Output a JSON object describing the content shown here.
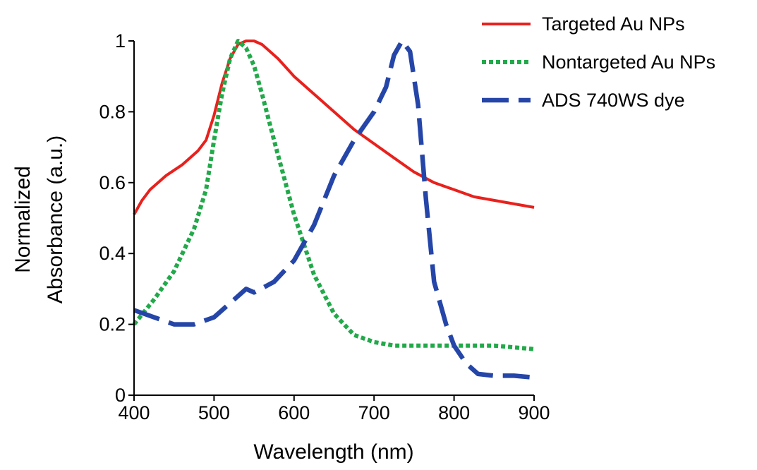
{
  "chart_data": {
    "type": "line",
    "title": "",
    "xlabel": "Wavelength (nm)",
    "ylabel_lines": [
      "Normalized",
      "Absorbance (a.u.)"
    ],
    "xlim": [
      400,
      900
    ],
    "ylim": [
      0,
      1
    ],
    "xticks": [
      "400",
      "500",
      "600",
      "700",
      "800",
      "900"
    ],
    "yticks": [
      "0",
      "0.2",
      "0.4",
      "0.6",
      "0.8",
      "1"
    ],
    "grid": false,
    "legend_position": "top-right",
    "series": [
      {
        "name": "Targeted Au NPs",
        "color": "#e8211d",
        "style": "solid",
        "x": [
          400,
          410,
          420,
          440,
          460,
          480,
          490,
          500,
          510,
          520,
          530,
          540,
          550,
          560,
          580,
          600,
          625,
          650,
          675,
          700,
          725,
          750,
          775,
          800,
          825,
          850,
          875,
          900
        ],
        "y": [
          0.51,
          0.55,
          0.58,
          0.62,
          0.65,
          0.69,
          0.72,
          0.79,
          0.88,
          0.95,
          0.99,
          1.0,
          1.0,
          0.99,
          0.95,
          0.9,
          0.85,
          0.8,
          0.75,
          0.71,
          0.67,
          0.63,
          0.6,
          0.58,
          0.56,
          0.55,
          0.54,
          0.53
        ]
      },
      {
        "name": "Nontargeted Au NPs",
        "color": "#22a94a",
        "style": "dotted",
        "x": [
          400,
          425,
          450,
          475,
          490,
          500,
          510,
          520,
          530,
          540,
          550,
          560,
          575,
          600,
          625,
          650,
          675,
          700,
          725,
          750,
          775,
          800,
          825,
          850,
          875,
          900
        ],
        "y": [
          0.2,
          0.27,
          0.35,
          0.47,
          0.58,
          0.72,
          0.85,
          0.95,
          1.0,
          0.98,
          0.93,
          0.85,
          0.72,
          0.51,
          0.34,
          0.23,
          0.17,
          0.15,
          0.14,
          0.14,
          0.14,
          0.14,
          0.14,
          0.14,
          0.135,
          0.13
        ]
      },
      {
        "name": "ADS 740WS dye",
        "color": "#2546a8",
        "style": "dashed",
        "x": [
          400,
          425,
          450,
          475,
          500,
          525,
          540,
          550,
          575,
          600,
          625,
          650,
          675,
          700,
          715,
          725,
          735,
          745,
          755,
          765,
          775,
          790,
          800,
          815,
          830,
          850,
          875,
          900
        ],
        "y": [
          0.24,
          0.22,
          0.2,
          0.2,
          0.22,
          0.27,
          0.3,
          0.29,
          0.32,
          0.38,
          0.48,
          0.62,
          0.72,
          0.8,
          0.87,
          0.96,
          1.0,
          0.97,
          0.82,
          0.55,
          0.32,
          0.2,
          0.14,
          0.09,
          0.06,
          0.055,
          0.055,
          0.05
        ]
      }
    ]
  }
}
